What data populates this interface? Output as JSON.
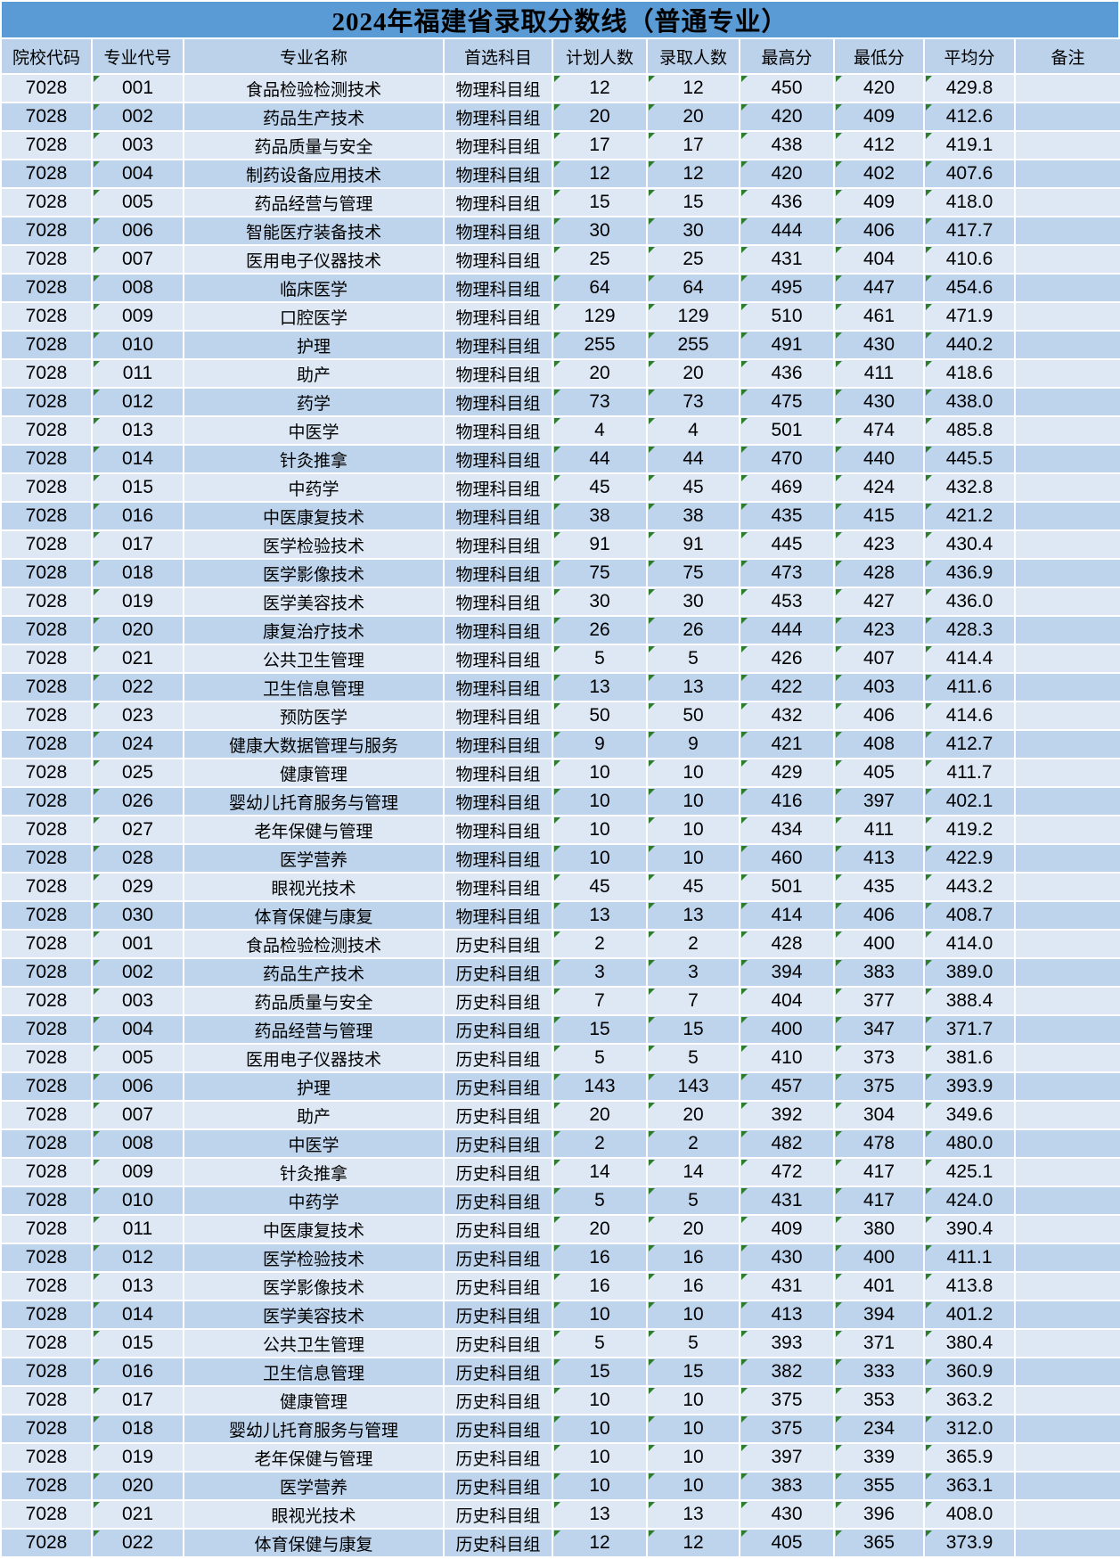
{
  "title": "2024年福建省录取分数线（普通专业）",
  "columns": [
    "院校代码",
    "专业代号",
    "专业名称",
    "首选科目",
    "计划人数",
    "录取人数",
    "最高分",
    "最低分",
    "平均分",
    "备注"
  ],
  "colors": {
    "title_bg": "#5b9bd5",
    "header_bg": "#bcd2ea",
    "row_light": "#dde8f4",
    "row_dark": "#bdd4ec",
    "error_indicator_green": "#2d7d2d",
    "gridline": "#ffffff",
    "text": "#000000"
  },
  "error_indicator_columns": [
    1,
    4,
    5,
    6,
    7,
    8
  ],
  "rows": [
    [
      "7028",
      "001",
      "食品检验检测技术",
      "物理科目组",
      "12",
      "12",
      "450",
      "420",
      "429.8",
      ""
    ],
    [
      "7028",
      "002",
      "药品生产技术",
      "物理科目组",
      "20",
      "20",
      "420",
      "409",
      "412.6",
      ""
    ],
    [
      "7028",
      "003",
      "药品质量与安全",
      "物理科目组",
      "17",
      "17",
      "438",
      "412",
      "419.1",
      ""
    ],
    [
      "7028",
      "004",
      "制药设备应用技术",
      "物理科目组",
      "12",
      "12",
      "420",
      "402",
      "407.6",
      ""
    ],
    [
      "7028",
      "005",
      "药品经营与管理",
      "物理科目组",
      "15",
      "15",
      "436",
      "409",
      "418.0",
      ""
    ],
    [
      "7028",
      "006",
      "智能医疗装备技术",
      "物理科目组",
      "30",
      "30",
      "444",
      "406",
      "417.7",
      ""
    ],
    [
      "7028",
      "007",
      "医用电子仪器技术",
      "物理科目组",
      "25",
      "25",
      "431",
      "404",
      "410.6",
      ""
    ],
    [
      "7028",
      "008",
      "临床医学",
      "物理科目组",
      "64",
      "64",
      "495",
      "447",
      "454.6",
      ""
    ],
    [
      "7028",
      "009",
      "口腔医学",
      "物理科目组",
      "129",
      "129",
      "510",
      "461",
      "471.9",
      ""
    ],
    [
      "7028",
      "010",
      "护理",
      "物理科目组",
      "255",
      "255",
      "491",
      "430",
      "440.2",
      ""
    ],
    [
      "7028",
      "011",
      "助产",
      "物理科目组",
      "20",
      "20",
      "436",
      "411",
      "418.6",
      ""
    ],
    [
      "7028",
      "012",
      "药学",
      "物理科目组",
      "73",
      "73",
      "475",
      "430",
      "438.0",
      ""
    ],
    [
      "7028",
      "013",
      "中医学",
      "物理科目组",
      "4",
      "4",
      "501",
      "474",
      "485.8",
      ""
    ],
    [
      "7028",
      "014",
      "针灸推拿",
      "物理科目组",
      "44",
      "44",
      "470",
      "440",
      "445.5",
      ""
    ],
    [
      "7028",
      "015",
      "中药学",
      "物理科目组",
      "45",
      "45",
      "469",
      "424",
      "432.8",
      ""
    ],
    [
      "7028",
      "016",
      "中医康复技术",
      "物理科目组",
      "38",
      "38",
      "435",
      "415",
      "421.2",
      ""
    ],
    [
      "7028",
      "017",
      "医学检验技术",
      "物理科目组",
      "91",
      "91",
      "445",
      "423",
      "430.4",
      ""
    ],
    [
      "7028",
      "018",
      "医学影像技术",
      "物理科目组",
      "75",
      "75",
      "473",
      "428",
      "436.9",
      ""
    ],
    [
      "7028",
      "019",
      "医学美容技术",
      "物理科目组",
      "30",
      "30",
      "453",
      "427",
      "436.0",
      ""
    ],
    [
      "7028",
      "020",
      "康复治疗技术",
      "物理科目组",
      "26",
      "26",
      "444",
      "423",
      "428.3",
      ""
    ],
    [
      "7028",
      "021",
      "公共卫生管理",
      "物理科目组",
      "5",
      "5",
      "426",
      "407",
      "414.4",
      ""
    ],
    [
      "7028",
      "022",
      "卫生信息管理",
      "物理科目组",
      "13",
      "13",
      "422",
      "403",
      "411.6",
      ""
    ],
    [
      "7028",
      "023",
      "预防医学",
      "物理科目组",
      "50",
      "50",
      "432",
      "406",
      "414.6",
      ""
    ],
    [
      "7028",
      "024",
      "健康大数据管理与服务",
      "物理科目组",
      "9",
      "9",
      "421",
      "408",
      "412.7",
      ""
    ],
    [
      "7028",
      "025",
      "健康管理",
      "物理科目组",
      "10",
      "10",
      "429",
      "405",
      "411.7",
      ""
    ],
    [
      "7028",
      "026",
      "婴幼儿托育服务与管理",
      "物理科目组",
      "10",
      "10",
      "416",
      "397",
      "402.1",
      ""
    ],
    [
      "7028",
      "027",
      "老年保健与管理",
      "物理科目组",
      "10",
      "10",
      "434",
      "411",
      "419.2",
      ""
    ],
    [
      "7028",
      "028",
      "医学营养",
      "物理科目组",
      "10",
      "10",
      "460",
      "413",
      "422.9",
      ""
    ],
    [
      "7028",
      "029",
      "眼视光技术",
      "物理科目组",
      "45",
      "45",
      "501",
      "435",
      "443.2",
      ""
    ],
    [
      "7028",
      "030",
      "体育保健与康复",
      "物理科目组",
      "13",
      "13",
      "414",
      "406",
      "408.7",
      ""
    ],
    [
      "7028",
      "001",
      "食品检验检测技术",
      "历史科目组",
      "2",
      "2",
      "428",
      "400",
      "414.0",
      ""
    ],
    [
      "7028",
      "002",
      "药品生产技术",
      "历史科目组",
      "3",
      "3",
      "394",
      "383",
      "389.0",
      ""
    ],
    [
      "7028",
      "003",
      "药品质量与安全",
      "历史科目组",
      "7",
      "7",
      "404",
      "377",
      "388.4",
      ""
    ],
    [
      "7028",
      "004",
      "药品经营与管理",
      "历史科目组",
      "15",
      "15",
      "400",
      "347",
      "371.7",
      ""
    ],
    [
      "7028",
      "005",
      "医用电子仪器技术",
      "历史科目组",
      "5",
      "5",
      "410",
      "373",
      "381.6",
      ""
    ],
    [
      "7028",
      "006",
      "护理",
      "历史科目组",
      "143",
      "143",
      "457",
      "375",
      "393.9",
      ""
    ],
    [
      "7028",
      "007",
      "助产",
      "历史科目组",
      "20",
      "20",
      "392",
      "304",
      "349.6",
      ""
    ],
    [
      "7028",
      "008",
      "中医学",
      "历史科目组",
      "2",
      "2",
      "482",
      "478",
      "480.0",
      ""
    ],
    [
      "7028",
      "009",
      "针灸推拿",
      "历史科目组",
      "14",
      "14",
      "472",
      "417",
      "425.1",
      ""
    ],
    [
      "7028",
      "010",
      "中药学",
      "历史科目组",
      "5",
      "5",
      "431",
      "417",
      "424.0",
      ""
    ],
    [
      "7028",
      "011",
      "中医康复技术",
      "历史科目组",
      "20",
      "20",
      "409",
      "380",
      "390.4",
      ""
    ],
    [
      "7028",
      "012",
      "医学检验技术",
      "历史科目组",
      "16",
      "16",
      "430",
      "400",
      "411.1",
      ""
    ],
    [
      "7028",
      "013",
      "医学影像技术",
      "历史科目组",
      "16",
      "16",
      "431",
      "401",
      "413.8",
      ""
    ],
    [
      "7028",
      "014",
      "医学美容技术",
      "历史科目组",
      "10",
      "10",
      "413",
      "394",
      "401.2",
      ""
    ],
    [
      "7028",
      "015",
      "公共卫生管理",
      "历史科目组",
      "5",
      "5",
      "393",
      "371",
      "380.4",
      ""
    ],
    [
      "7028",
      "016",
      "卫生信息管理",
      "历史科目组",
      "15",
      "15",
      "382",
      "333",
      "360.9",
      ""
    ],
    [
      "7028",
      "017",
      "健康管理",
      "历史科目组",
      "10",
      "10",
      "375",
      "353",
      "363.2",
      ""
    ],
    [
      "7028",
      "018",
      "婴幼儿托育服务与管理",
      "历史科目组",
      "10",
      "10",
      "375",
      "234",
      "312.0",
      ""
    ],
    [
      "7028",
      "019",
      "老年保健与管理",
      "历史科目组",
      "10",
      "10",
      "397",
      "339",
      "365.9",
      ""
    ],
    [
      "7028",
      "020",
      "医学营养",
      "历史科目组",
      "10",
      "10",
      "383",
      "355",
      "363.1",
      ""
    ],
    [
      "7028",
      "021",
      "眼视光技术",
      "历史科目组",
      "13",
      "13",
      "430",
      "396",
      "408.0",
      ""
    ],
    [
      "7028",
      "022",
      "体育保健与康复",
      "历史科目组",
      "12",
      "12",
      "405",
      "365",
      "373.9",
      ""
    ]
  ]
}
